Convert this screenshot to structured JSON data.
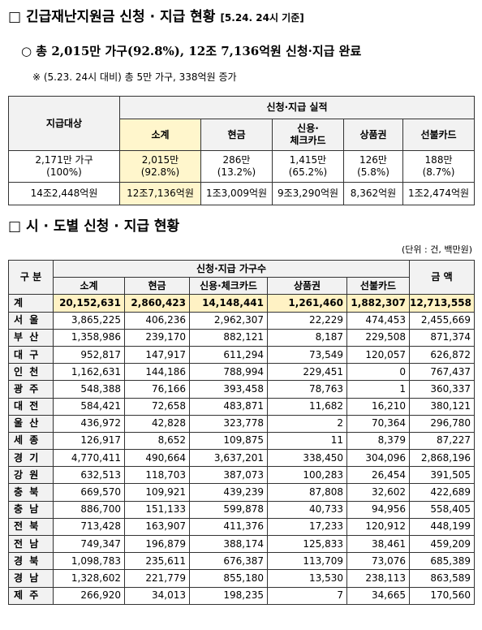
{
  "header": {
    "title": "□ 긴급재난지원금 신청 · 지급 현황",
    "date": "[5.24. 24시 기준]"
  },
  "summary": {
    "headline": "○ 총 2,015만 가구(92.8%), 12조 7,136억원 신청·지급 완료",
    "note": "※ (5.23. 24시 대비) 총 5만 가구, 338억원 증가"
  },
  "summary_table": {
    "target_header": "지급대상",
    "group_header": "신청·지급 실적",
    "columns": [
      "소계",
      "현금",
      "신용·\n체크카드",
      "상품권",
      "선불카드"
    ],
    "rows": [
      [
        "2,171만 가구\n(100%)",
        "2,015만\n(92.8%)",
        "286만\n(13.2%)",
        "1,415만\n(65.2%)",
        "126만\n(5.8%)",
        "188만\n(8.7%)"
      ],
      [
        "14조2,448억원",
        "12조7,136억원",
        "1조3,009억원",
        "9조3,290억원",
        "8,362억원",
        "1조2,474억원"
      ]
    ]
  },
  "region_section": {
    "title": "□ 시 · 도별 신청 · 지급 현황",
    "unit": "(단위 : 건, 백만원)"
  },
  "region_table": {
    "region_header": "구 분",
    "group_header": "신청·지급 가구수",
    "amount_header": "금 액",
    "columns": [
      "소계",
      "현금",
      "신용·체크카드",
      "상품권",
      "선불카드"
    ],
    "rows": [
      [
        "계",
        "20,152,631",
        "2,860,423",
        "14,148,441",
        "1,261,460",
        "1,882,307",
        "12,713,558"
      ],
      [
        "서 울",
        "3,865,225",
        "406,236",
        "2,962,307",
        "22,229",
        "474,453",
        "2,455,669"
      ],
      [
        "부 산",
        "1,358,986",
        "239,170",
        "882,121",
        "8,187",
        "229,508",
        "871,374"
      ],
      [
        "대 구",
        "952,817",
        "147,917",
        "611,294",
        "73,549",
        "120,057",
        "626,872"
      ],
      [
        "인 천",
        "1,162,631",
        "144,186",
        "788,994",
        "229,451",
        "0",
        "767,437"
      ],
      [
        "광 주",
        "548,388",
        "76,166",
        "393,458",
        "78,763",
        "1",
        "360,337"
      ],
      [
        "대 전",
        "584,421",
        "72,658",
        "483,871",
        "11,682",
        "16,210",
        "380,121"
      ],
      [
        "울 산",
        "436,972",
        "42,828",
        "323,778",
        "2",
        "70,364",
        "296,780"
      ],
      [
        "세 종",
        "126,917",
        "8,652",
        "109,875",
        "11",
        "8,379",
        "87,227"
      ],
      [
        "경 기",
        "4,770,411",
        "490,664",
        "3,637,201",
        "338,450",
        "304,096",
        "2,868,196"
      ],
      [
        "강 원",
        "632,513",
        "118,703",
        "387,073",
        "100,283",
        "26,454",
        "391,505"
      ],
      [
        "충 북",
        "669,570",
        "109,921",
        "439,239",
        "87,808",
        "32,602",
        "422,689"
      ],
      [
        "충 남",
        "886,700",
        "151,133",
        "599,878",
        "40,733",
        "94,956",
        "558,405"
      ],
      [
        "전 북",
        "713,428",
        "163,907",
        "411,376",
        "17,233",
        "120,912",
        "448,199"
      ],
      [
        "전 남",
        "749,347",
        "196,879",
        "388,174",
        "125,833",
        "38,461",
        "459,209"
      ],
      [
        "경 북",
        "1,098,783",
        "235,611",
        "676,387",
        "113,709",
        "73,076",
        "685,389"
      ],
      [
        "경 남",
        "1,328,602",
        "221,779",
        "855,180",
        "13,530",
        "238,113",
        "863,589"
      ],
      [
        "제 주",
        "266,920",
        "34,013",
        "198,235",
        "7",
        "34,665",
        "170,560"
      ]
    ]
  }
}
